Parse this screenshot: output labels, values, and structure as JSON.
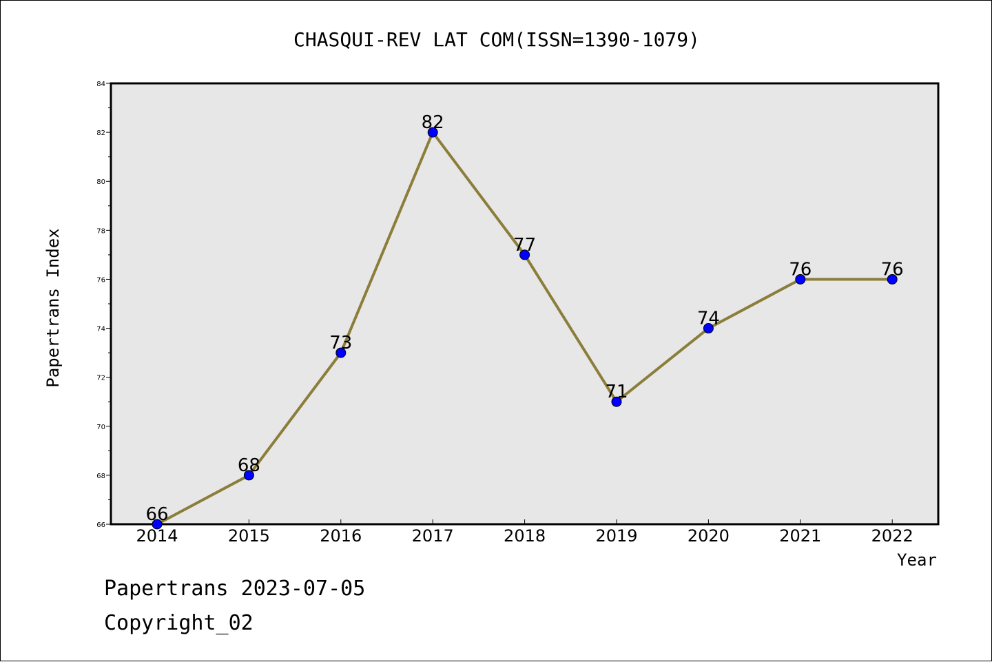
{
  "chart_data": {
    "type": "line",
    "title": "CHASQUI-REV LAT COM(ISSN=1390-1079)",
    "xlabel": "Year",
    "ylabel": "Papertrans Index",
    "x": [
      2014,
      2015,
      2016,
      2017,
      2018,
      2019,
      2020,
      2021,
      2022
    ],
    "series": [
      {
        "values": [
          66,
          68,
          73,
          82,
          77,
          71,
          74,
          76,
          76
        ]
      }
    ],
    "ylim": [
      66,
      84
    ],
    "yticks": [
      66,
      68,
      70,
      72,
      74,
      76,
      78,
      80,
      82,
      84
    ],
    "grid": false,
    "line_color": "#8b7d3a",
    "marker_color": "#0000ff",
    "plot_background": "#e7e7e7"
  },
  "footer": {
    "line1": "Papertrans 2023-07-05",
    "line2": "Copyright_02"
  }
}
